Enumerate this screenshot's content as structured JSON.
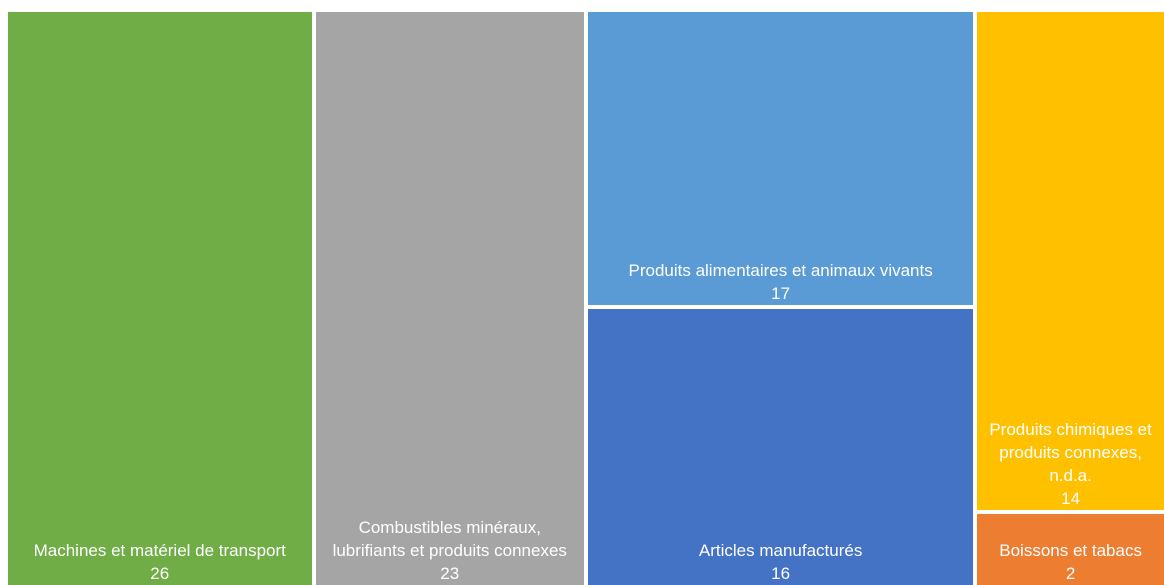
{
  "chart_data": {
    "type": "treemap",
    "categories": [
      "Machines et matériel de transport",
      "Combustibles minéraux, lubrifiants et produits connexes",
      "Produits alimentaires et animaux vivants",
      "Articles manufacturés",
      "Produits chimiques et produits connexes, n.d.a.",
      "Boissons et tabacs"
    ],
    "values": [
      26,
      23,
      17,
      16,
      14,
      2
    ],
    "colors": [
      "#70ad47",
      "#a5a5a5",
      "#5b9bd5",
      "#4472c4",
      "#ffc000",
      "#ed7d31"
    ]
  }
}
